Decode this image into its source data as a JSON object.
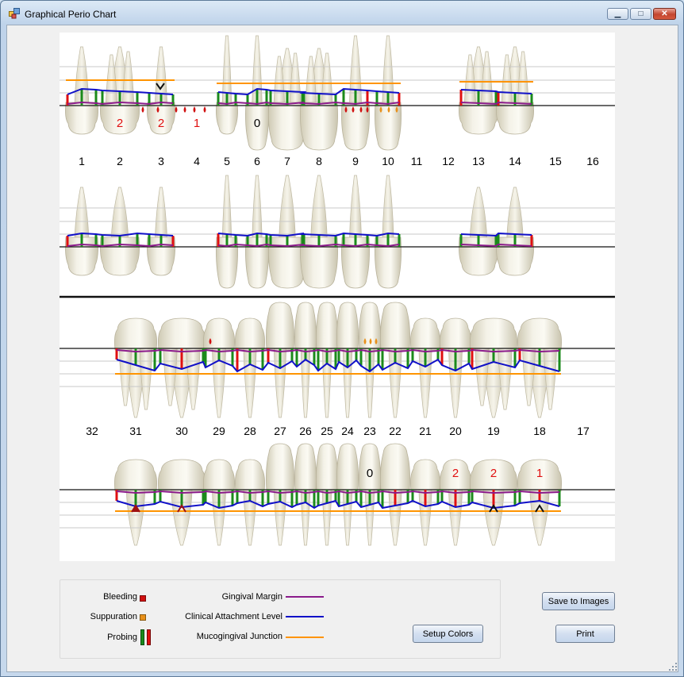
{
  "window": {
    "title": "Graphical Perio Chart",
    "minimize_symbol": "▁",
    "maximize_symbol": "□",
    "close_symbol": "✕"
  },
  "chart": {
    "upper_numbers": [
      "1",
      "2",
      "3",
      "4",
      "5",
      "6",
      "7",
      "8",
      "9",
      "10",
      "11",
      "12",
      "13",
      "14",
      "15",
      "16"
    ],
    "lower_numbers": [
      "32",
      "31",
      "30",
      "29",
      "28",
      "27",
      "26",
      "25",
      "24",
      "23",
      "22",
      "21",
      "20",
      "19",
      "18",
      "17"
    ],
    "upper_marks": [
      {
        "tooth": "2",
        "text": "2"
      },
      {
        "tooth": "3",
        "text": "2"
      },
      {
        "tooth": "4",
        "text": "1"
      },
      {
        "tooth": "6",
        "text": "0"
      }
    ],
    "lower_marks": [
      {
        "tooth": "23",
        "text": "0"
      },
      {
        "tooth": "20",
        "text": "2"
      },
      {
        "tooth": "19",
        "text": "2"
      },
      {
        "tooth": "18",
        "text": "1"
      }
    ]
  },
  "legend": {
    "bleeding": "Bleeding",
    "suppuration": "Suppuration",
    "probing": "Probing",
    "gingival_margin": "Gingival Margin",
    "clinical_attachment_level": "Clinical Attachment Level",
    "mucogingival_junction": "Mucogingival Junction",
    "colors": {
      "bleeding": "#d01010",
      "suppuration": "#e8901a",
      "probing_green": "#1b8a1b",
      "probing_red": "#e01010",
      "gingival_margin": "#8b1a8b",
      "clinical_attachment_level": "#1010c8",
      "mucogingival_junction": "#ff9400"
    }
  },
  "buttons": {
    "setup_colors": "Setup Colors",
    "save_to_images": "Save to Images",
    "print": "Print"
  }
}
